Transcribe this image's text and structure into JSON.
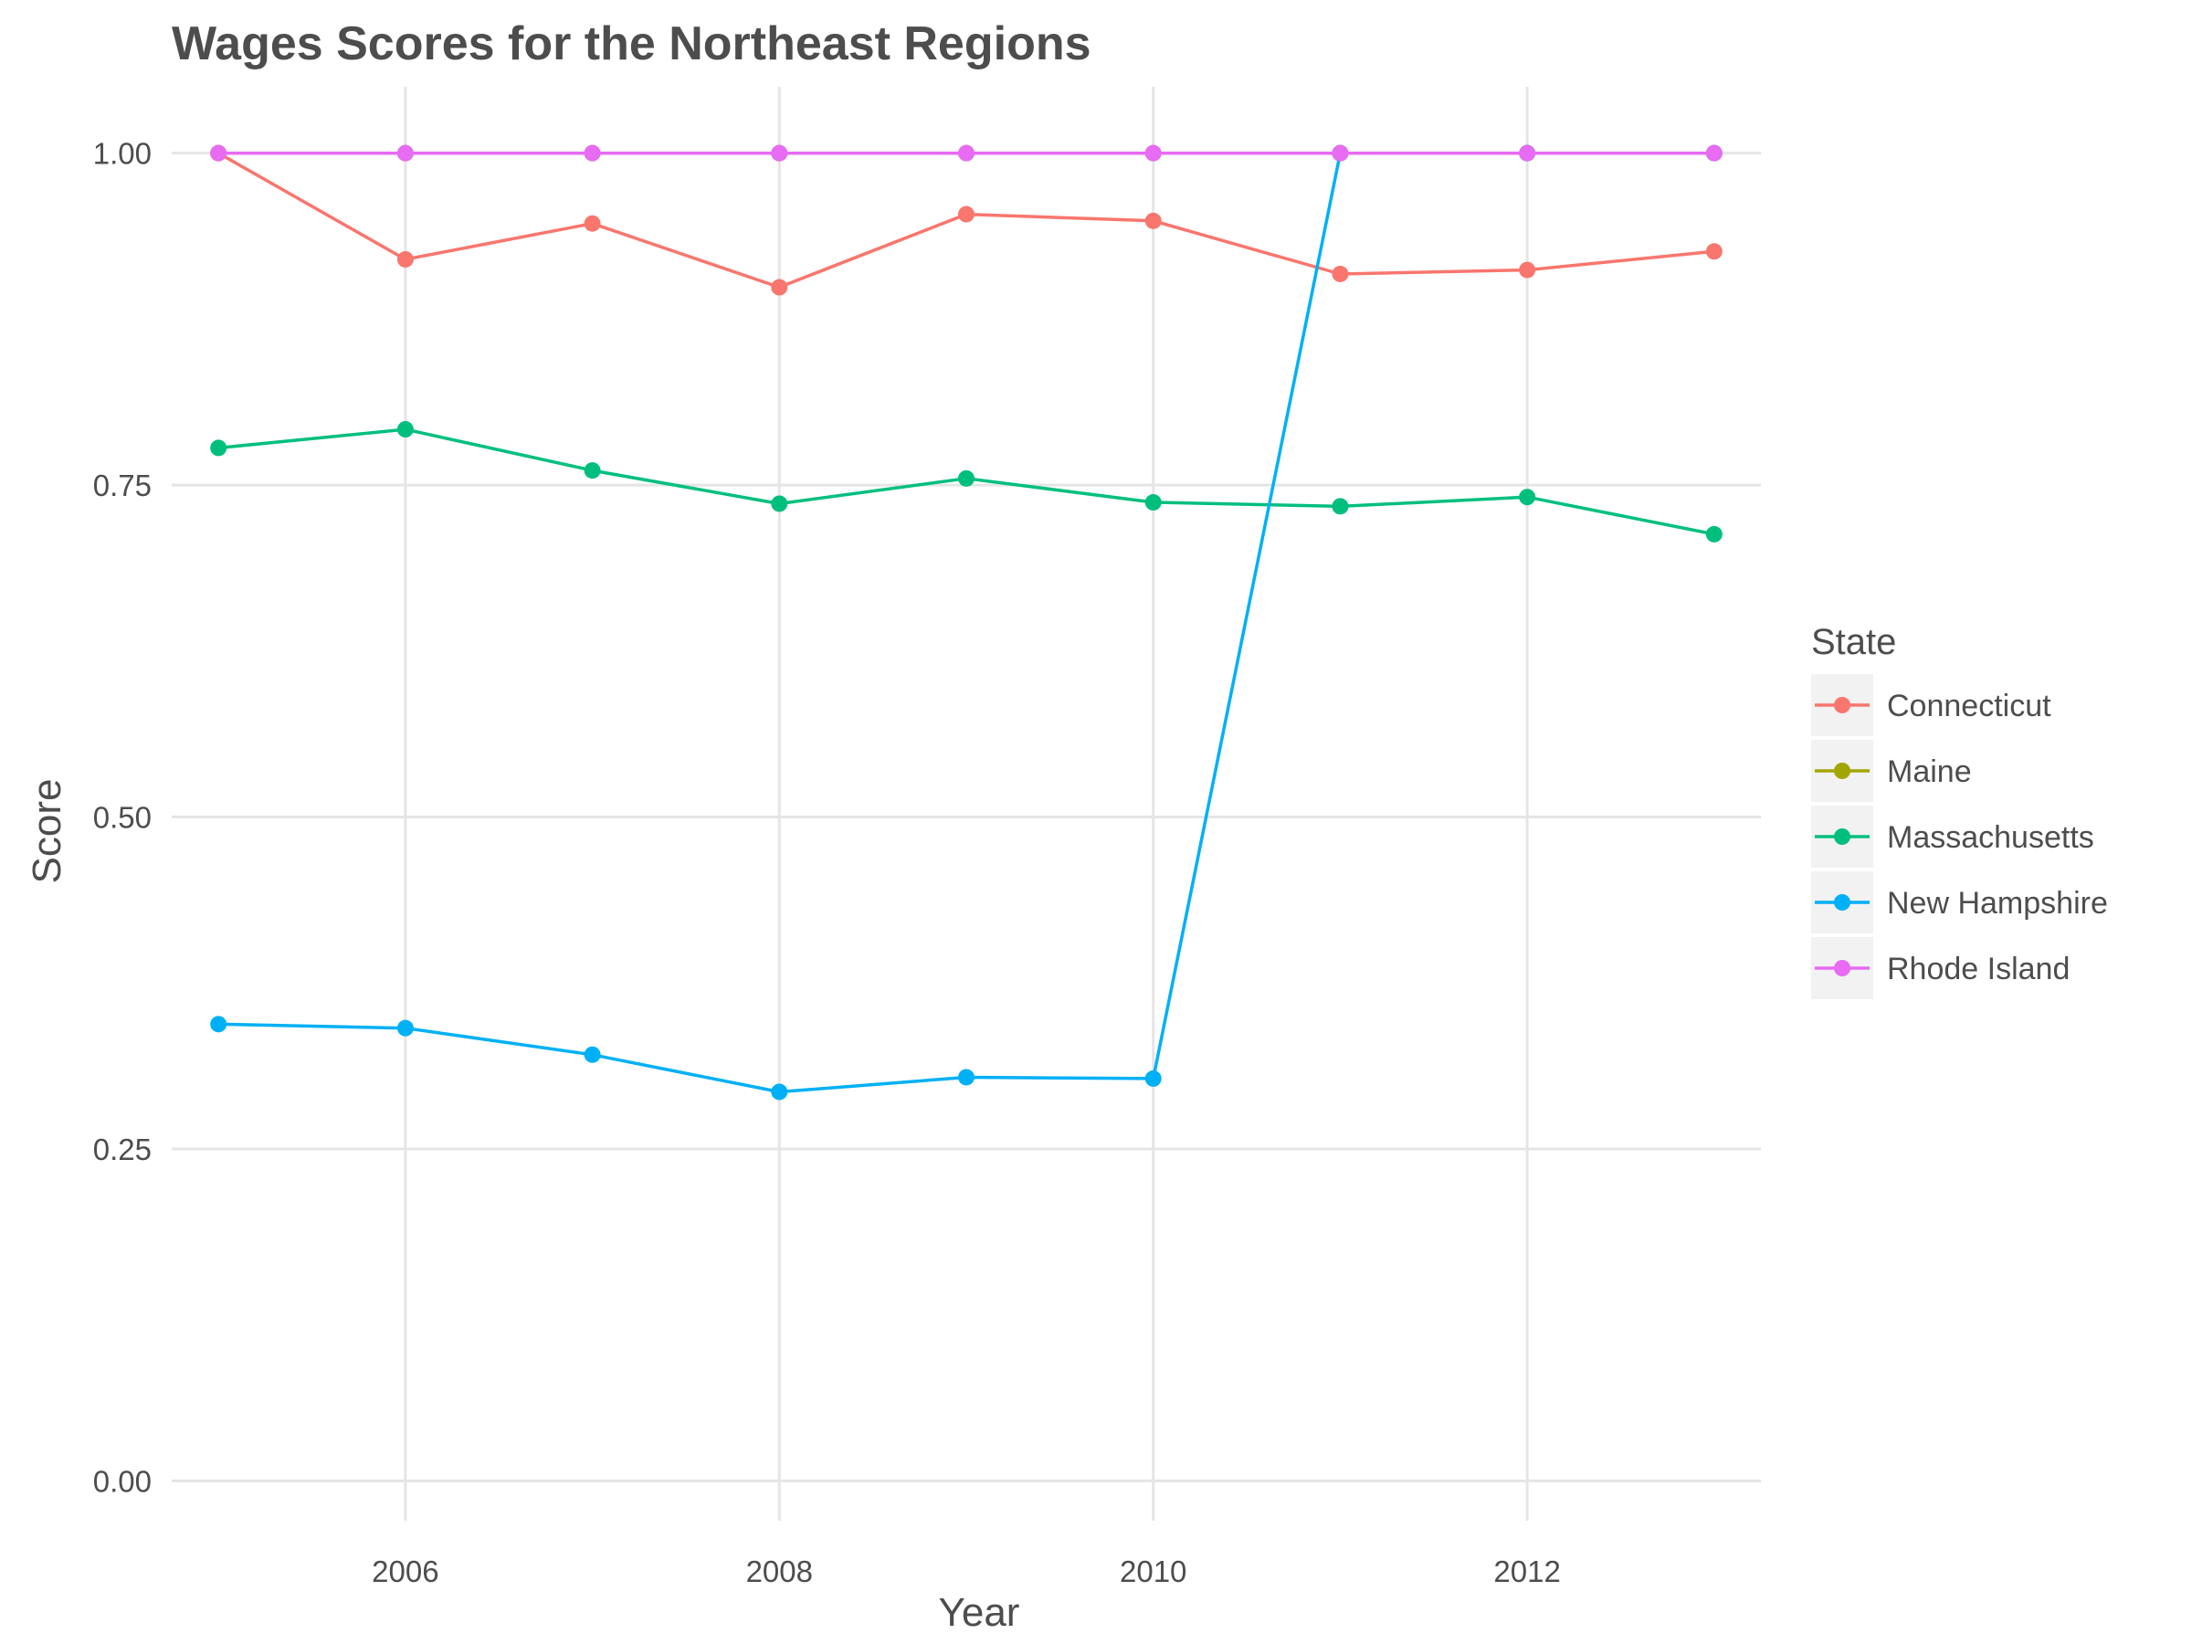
{
  "chart_data": {
    "type": "line",
    "title": "Wages Scores for the Northeast Regions",
    "xlabel": "Year",
    "ylabel": "Score",
    "xlim": [
      2004.75,
      2013.25
    ],
    "ylim": [
      -0.03,
      1.05
    ],
    "x_ticks": [
      2006,
      2008,
      2010,
      2012
    ],
    "x_tick_labels": [
      "2006",
      "2008",
      "2010",
      "2012"
    ],
    "y_ticks": [
      0,
      0.25,
      0.5,
      0.75,
      1.0
    ],
    "y_tick_labels": [
      "0.00",
      "0.25",
      "0.50",
      "0.75",
      "1.00"
    ],
    "grid": true,
    "legend": {
      "title": "State",
      "position": "right"
    },
    "x": [
      2005,
      2006,
      2007,
      2008,
      2009,
      2010,
      2011,
      2012,
      2013
    ],
    "series": [
      {
        "name": "Connecticut",
        "color": "#F8766D",
        "values": [
          1.0,
          0.92,
          0.947,
          0.899,
          0.954,
          0.949,
          0.909,
          0.912,
          0.926
        ]
      },
      {
        "name": "Maine",
        "color": "#A3A500",
        "values": [
          1.0,
          1.0,
          1.0,
          1.0,
          1.0,
          1.0,
          1.0,
          1.0,
          1.0
        ]
      },
      {
        "name": "Massachusetts",
        "color": "#00BF7D",
        "values": [
          0.778,
          0.792,
          0.761,
          0.736,
          0.755,
          0.737,
          0.734,
          0.741,
          0.713
        ]
      },
      {
        "name": "New Hampshire",
        "color": "#00B0F6",
        "values": [
          0.344,
          0.341,
          0.321,
          0.293,
          0.304,
          0.303,
          1.0,
          1.0,
          1.0
        ]
      },
      {
        "name": "Rhode Island",
        "color": "#E76BF3",
        "values": [
          1.0,
          1.0,
          1.0,
          1.0,
          1.0,
          1.0,
          1.0,
          1.0,
          1.0
        ]
      }
    ]
  }
}
